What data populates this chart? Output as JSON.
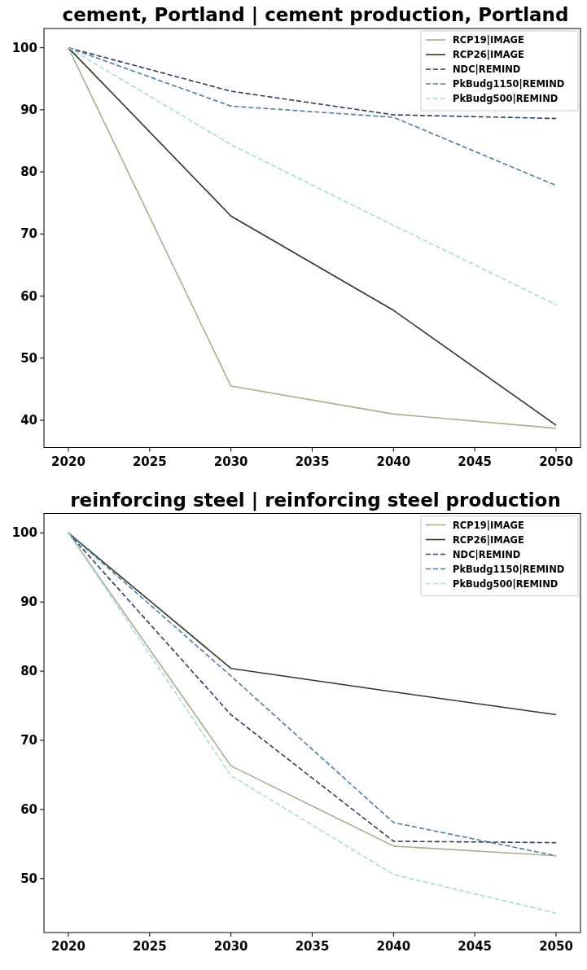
{
  "chart_data": [
    {
      "type": "line",
      "title": "cement, Portland | cement production, Portland",
      "x": [
        2020,
        2030,
        2040,
        2050
      ],
      "xlim": [
        2018.5,
        2051.5
      ],
      "xticks": [
        2020,
        2025,
        2030,
        2035,
        2040,
        2045,
        2050
      ],
      "ylim": [
        35.6,
        103.1
      ],
      "yticks": [
        40,
        50,
        60,
        70,
        80,
        90,
        100
      ],
      "grid": false,
      "legend": "top right",
      "marker": "none",
      "series": [
        {
          "name": "RCP19|IMAGE",
          "color": "#a8b08c",
          "line_style": "solid",
          "values": [
            100,
            45.5,
            41.0,
            38.7
          ]
        },
        {
          "name": "RCP26|IMAGE",
          "color": "#323a24",
          "line_style": "solid",
          "values": [
            100,
            72.9,
            57.7,
            39.2
          ]
        },
        {
          "name": "NDC|REMIND",
          "color": "#2b3f5e",
          "line_style": "dashed",
          "values": [
            100,
            93.0,
            89.2,
            88.6
          ]
        },
        {
          "name": "PkBudg1150|REMIND",
          "color": "#4a7ea6",
          "line_style": "dashed",
          "values": [
            100,
            90.6,
            88.8,
            77.8
          ]
        },
        {
          "name": "PkBudg500|REMIND",
          "color": "#a6dcdf",
          "line_style": "dashed",
          "values": [
            100,
            84.4,
            71.4,
            58.6
          ]
        }
      ]
    },
    {
      "type": "line",
      "title": "reinforcing steel | reinforcing steel production",
      "x": [
        2020,
        2030,
        2040,
        2050
      ],
      "xlim": [
        2018.5,
        2051.5
      ],
      "xticks": [
        2020,
        2025,
        2030,
        2035,
        2040,
        2045,
        2050
      ],
      "ylim": [
        42.2,
        102.8
      ],
      "yticks": [
        50,
        60,
        70,
        80,
        90,
        100
      ],
      "grid": false,
      "legend": "top right",
      "marker": "none",
      "series": [
        {
          "name": "RCP19|IMAGE",
          "color": "#a8b08c",
          "line_style": "solid",
          "values": [
            100,
            66.3,
            54.7,
            53.3
          ]
        },
        {
          "name": "RCP26|IMAGE",
          "color": "#323a24",
          "line_style": "solid",
          "values": [
            100,
            80.4,
            77.0,
            73.7
          ]
        },
        {
          "name": "NDC|REMIND",
          "color": "#2b3f5e",
          "line_style": "dashed",
          "values": [
            100,
            73.7,
            55.4,
            55.2
          ]
        },
        {
          "name": "PkBudg1150|REMIND",
          "color": "#4a7ea6",
          "line_style": "dashed",
          "values": [
            100,
            79.3,
            58.1,
            53.3
          ]
        },
        {
          "name": "PkBudg500|REMIND",
          "color": "#a6dcdf",
          "line_style": "dashed",
          "values": [
            100,
            64.9,
            50.6,
            45.0
          ]
        }
      ]
    }
  ]
}
